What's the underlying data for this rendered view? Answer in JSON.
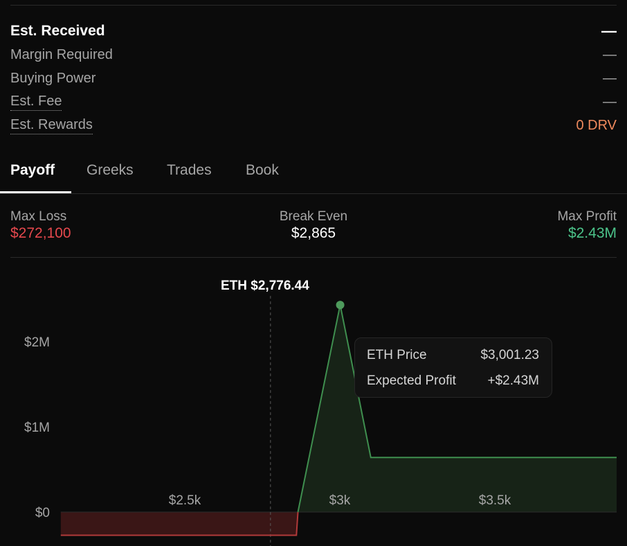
{
  "summary": {
    "est_received": {
      "label": "Est. Received",
      "value": "—"
    },
    "margin_required": {
      "label": "Margin Required",
      "value": "—"
    },
    "buying_power": {
      "label": "Buying Power",
      "value": "—"
    },
    "est_fee": {
      "label": "Est. Fee",
      "value": "—"
    },
    "est_rewards": {
      "label": "Est. Rewards",
      "value": "0 DRV"
    }
  },
  "tabs": [
    {
      "label": "Payoff",
      "active": true
    },
    {
      "label": "Greeks",
      "active": false
    },
    {
      "label": "Trades",
      "active": false
    },
    {
      "label": "Book",
      "active": false
    }
  ],
  "stats": {
    "max_loss": {
      "label": "Max Loss",
      "value": "$272,100"
    },
    "break_even": {
      "label": "Break Even",
      "value": "$2,865"
    },
    "max_profit": {
      "label": "Max Profit",
      "value": "$2.43M"
    }
  },
  "chart_data": {
    "type": "area",
    "current_price_label": "ETH $2,776.44",
    "current_price": 2776.44,
    "x_ticks": [
      "$2.5k",
      "$3k",
      "$3.5k"
    ],
    "y_ticks": [
      "$2M",
      "$1M",
      "$0"
    ],
    "series": [
      {
        "x": [
          2100,
          2860,
          2865,
          3001.23,
          3100,
          3900
        ],
        "y": [
          -272100,
          -272100,
          0,
          2430000,
          640000,
          640000
        ]
      }
    ],
    "tooltip": {
      "price_label": "ETH Price",
      "price_value": "$3,001.23",
      "profit_label": "Expected Profit",
      "profit_value": "+$2.43M"
    },
    "colors": {
      "profit": "#3f8f4f",
      "loss": "#b23a3a",
      "profit_fill": "#172317",
      "loss_fill": "#3a1616"
    }
  }
}
